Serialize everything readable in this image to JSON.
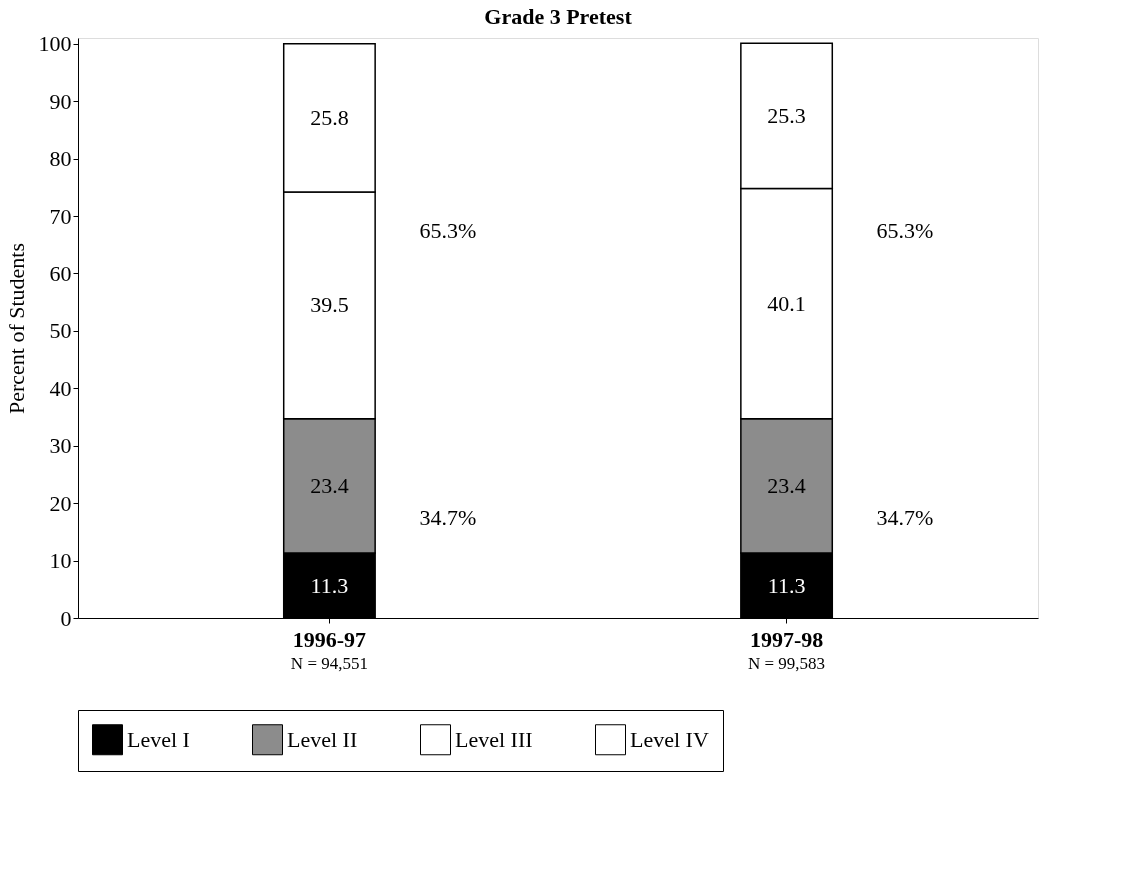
{
  "chart_data": {
    "type": "bar",
    "stacked": true,
    "title": "Grade 3 Pretest",
    "ylabel": "Percent of Students",
    "categories": [
      "1996-97",
      "1997-98"
    ],
    "series": [
      {
        "name": "Level I",
        "color": "#000000",
        "values": [
          11.3,
          11.3
        ]
      },
      {
        "name": "Level II",
        "color": "#8c8c8c",
        "values": [
          23.4,
          23.4
        ]
      },
      {
        "name": "Level III",
        "color": "#ffffff",
        "values": [
          39.5,
          40.1
        ]
      },
      {
        "name": "Level IV",
        "color": "#ffffff",
        "values": [
          25.8,
          25.3
        ]
      }
    ],
    "ylim": [
      0,
      101
    ],
    "yticks": [
      0,
      10,
      20,
      30,
      40,
      50,
      60,
      70,
      80,
      90,
      100
    ],
    "data_labels": true,
    "grid": false,
    "legend": "bottom",
    "annotations": [
      "N = 94,551",
      "N = 99,583",
      "65.3%",
      "34.7%",
      "65.3%",
      "34.7%"
    ]
  }
}
